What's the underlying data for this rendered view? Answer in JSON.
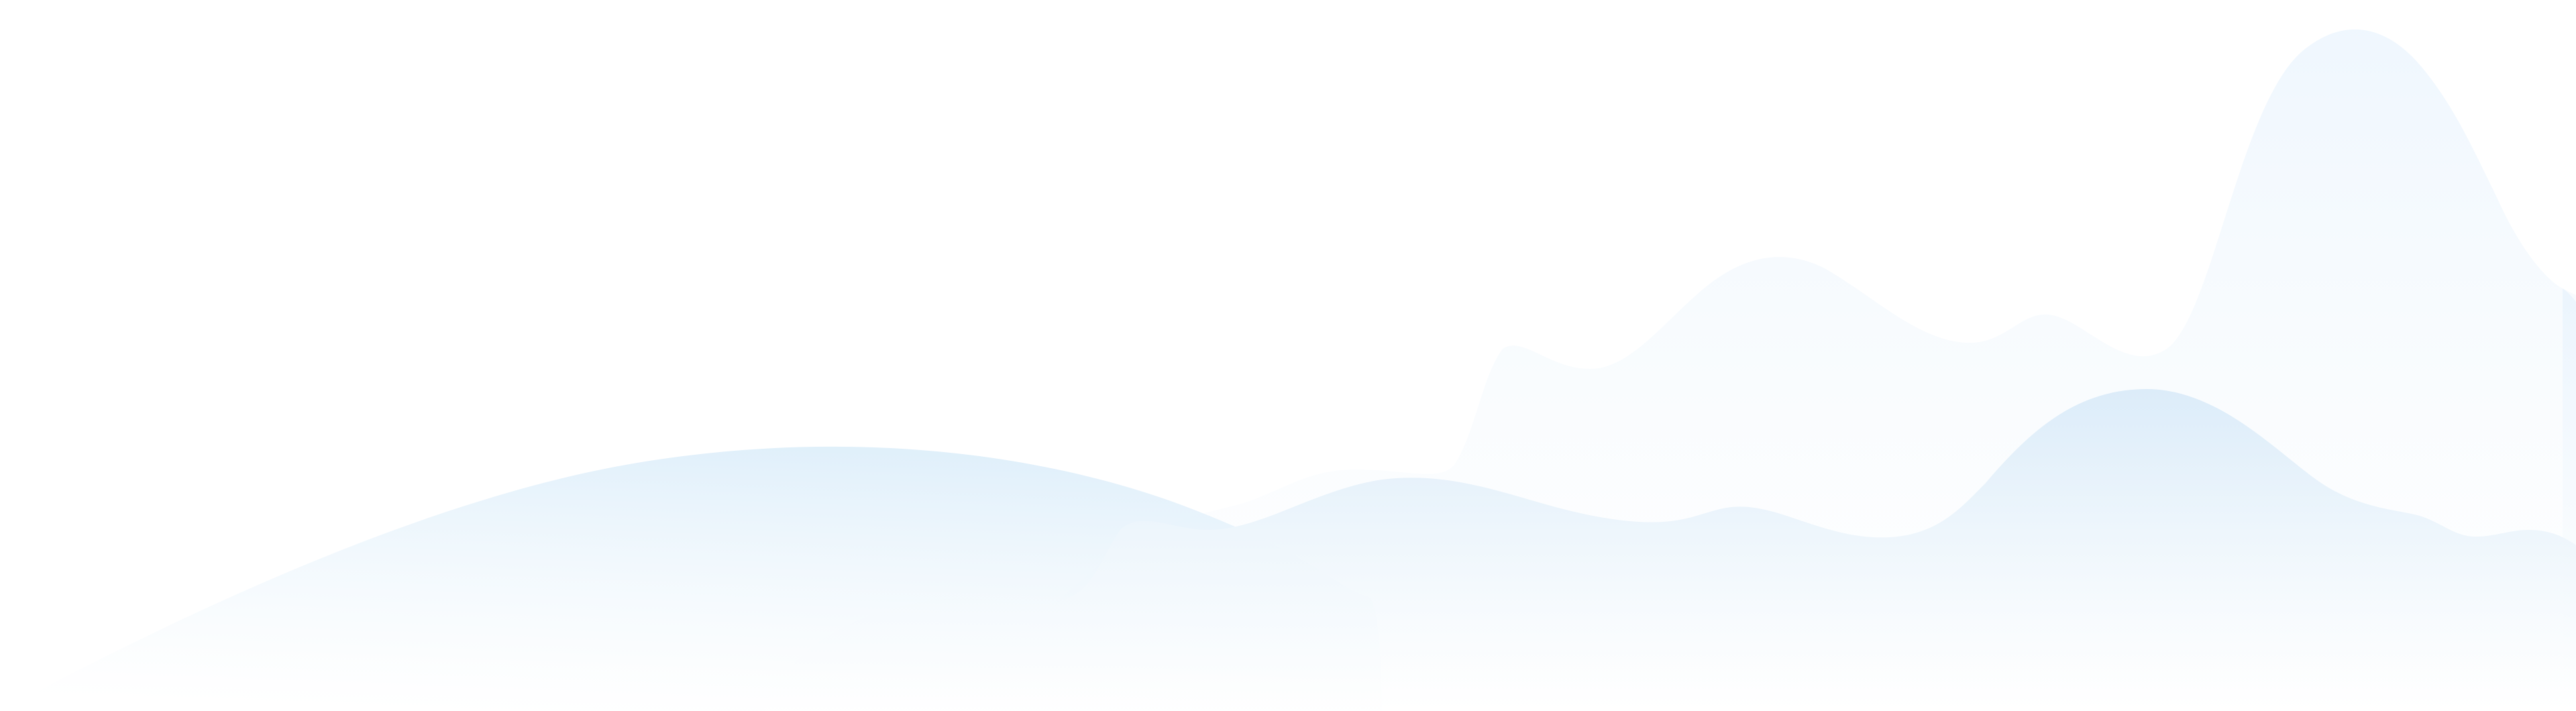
{
  "colors": {
    "background": "#ffffff",
    "mountain_back_top": "#eaf4fd",
    "mountain_mid_top": "#ddeefa",
    "mountain_front_top": "#dcecf9",
    "fade_to": "#ffffff"
  },
  "layers": [
    {
      "name": "back-mountain-ridge",
      "opacity": 0.75
    },
    {
      "name": "left-hill",
      "opacity": 0.9
    },
    {
      "name": "front-mountain-ridge",
      "opacity": 1.0
    }
  ]
}
